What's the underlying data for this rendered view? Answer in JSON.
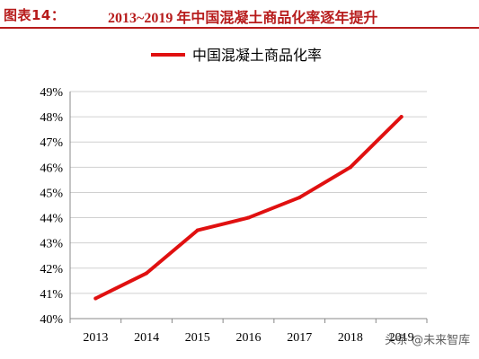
{
  "header": {
    "label": "图表14：",
    "title": "2013~2019 年中国混凝土商品化率逐年提升"
  },
  "chart_data": {
    "type": "line",
    "x": [
      "2013",
      "2014",
      "2015",
      "2016",
      "2017",
      "2018",
      "2019"
    ],
    "series": [
      {
        "name": "中国混凝土商品化率",
        "values": [
          40.8,
          41.8,
          43.5,
          44.0,
          44.8,
          46.0,
          48.0
        ]
      }
    ],
    "ylim": [
      40,
      49
    ],
    "yticks": [
      "40%",
      "41%",
      "42%",
      "43%",
      "44%",
      "45%",
      "46%",
      "47%",
      "48%",
      "49%"
    ],
    "grid": true,
    "legend": "top",
    "color": "#e01010"
  },
  "watermark": "头条 @未来智库"
}
